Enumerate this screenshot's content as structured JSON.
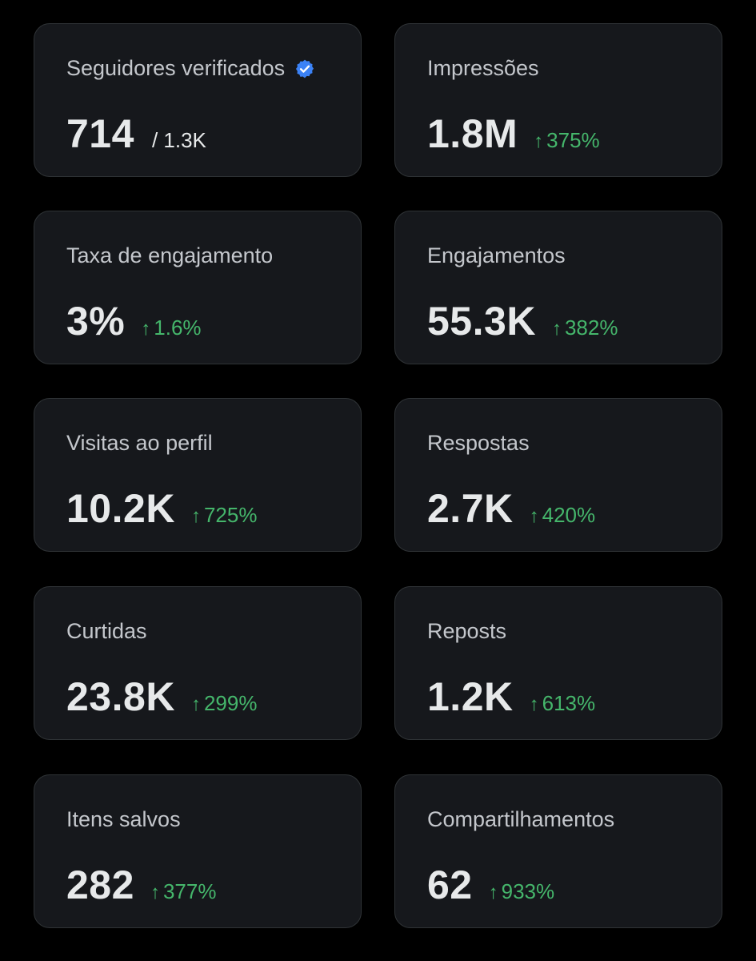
{
  "colors": {
    "background": "#000000",
    "card_background": "#16181c",
    "card_border": "#2f3336",
    "label_text": "#c4c7cc",
    "value_text": "#e7e9ea",
    "positive_change": "#45b66b",
    "verified_badge": "#3b82f6"
  },
  "icons": {
    "verified": "verified-badge-icon",
    "trend": "arrow-up-icon"
  },
  "cards": [
    {
      "label": "Seguidores verificados",
      "value": "714",
      "suffix": "/ 1.3K"
    },
    {
      "label": "Impressões",
      "value": "1.8M",
      "change": "375%"
    },
    {
      "label": "Taxa de engajamento",
      "value": "3%",
      "change": "1.6%"
    },
    {
      "label": "Engajamentos",
      "value": "55.3K",
      "change": "382%"
    },
    {
      "label": "Visitas ao perfil",
      "value": "10.2K",
      "change": "725%"
    },
    {
      "label": "Respostas",
      "value": "2.7K",
      "change": "420%"
    },
    {
      "label": "Curtidas",
      "value": "23.8K",
      "change": "299%"
    },
    {
      "label": "Reposts",
      "value": "1.2K",
      "change": "613%"
    },
    {
      "label": "Itens salvos",
      "value": "282",
      "change": "377%"
    },
    {
      "label": "Compartilhamentos",
      "value": "62",
      "change": "933%"
    }
  ]
}
